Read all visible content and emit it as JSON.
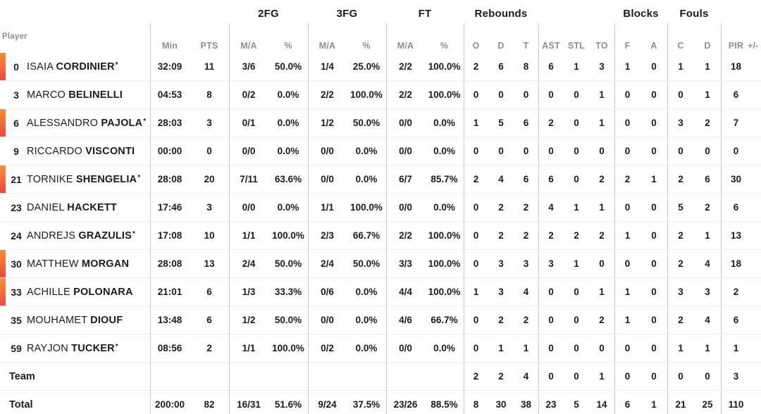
{
  "colors": {
    "on_court_bar_top": "#f79132",
    "on_court_bar_bottom": "#e94b41",
    "text_dark": "#1b1b1e",
    "text_gray": "#8e8e93",
    "divider_vertical": "#c7c7cb",
    "divider_horizontal": "#ececee"
  },
  "header": {
    "player_label": "Player",
    "groups": [
      {
        "label": "2FG"
      },
      {
        "label": "3FG"
      },
      {
        "label": "FT"
      },
      {
        "label": "Rebounds"
      },
      {
        "label": "Blocks"
      },
      {
        "label": "Fouls"
      }
    ],
    "columns": [
      "Min",
      "PTS",
      "M/A",
      "%",
      "M/A",
      "%",
      "M/A",
      "%",
      "O",
      "D",
      "T",
      "AST",
      "STL",
      "TO",
      "F",
      "A",
      "C",
      "D",
      "PIR",
      "+/-"
    ]
  },
  "rows": [
    {
      "type": "player",
      "number": "0",
      "first_name": "ISAIA",
      "last_name": "CORDINIER",
      "starter": true,
      "on_court": true,
      "min": "32:09",
      "pts": "11",
      "fg2_ma": "3/6",
      "fg2_pct": "50.0%",
      "fg3_ma": "1/4",
      "fg3_pct": "25.0%",
      "ft_ma": "2/2",
      "ft_pct": "100.0%",
      "reb_o": "2",
      "reb_d": "6",
      "reb_t": "8",
      "ast": "6",
      "stl": "1",
      "to": "3",
      "blk_f": "1",
      "blk_a": "0",
      "foul_c": "1",
      "foul_d": "1",
      "pir": "18"
    },
    {
      "type": "player",
      "number": "3",
      "first_name": "MARCO",
      "last_name": "BELINELLI",
      "starter": false,
      "on_court": false,
      "min": "04:53",
      "pts": "8",
      "fg2_ma": "0/2",
      "fg2_pct": "0.0%",
      "fg3_ma": "2/2",
      "fg3_pct": "100.0%",
      "ft_ma": "2/2",
      "ft_pct": "100.0%",
      "reb_o": "0",
      "reb_d": "0",
      "reb_t": "0",
      "ast": "0",
      "stl": "0",
      "to": "1",
      "blk_f": "0",
      "blk_a": "0",
      "foul_c": "0",
      "foul_d": "1",
      "pir": "6"
    },
    {
      "type": "player",
      "number": "6",
      "first_name": "ALESSANDRO",
      "last_name": "PAJOLA",
      "starter": true,
      "on_court": true,
      "min": "28:03",
      "pts": "3",
      "fg2_ma": "0/1",
      "fg2_pct": "0.0%",
      "fg3_ma": "1/2",
      "fg3_pct": "50.0%",
      "ft_ma": "0/0",
      "ft_pct": "0.0%",
      "reb_o": "1",
      "reb_d": "5",
      "reb_t": "6",
      "ast": "2",
      "stl": "0",
      "to": "1",
      "blk_f": "0",
      "blk_a": "0",
      "foul_c": "3",
      "foul_d": "2",
      "pir": "7"
    },
    {
      "type": "player",
      "number": "9",
      "first_name": "RICCARDO",
      "last_name": "VISCONTI",
      "starter": false,
      "on_court": false,
      "min": "00:00",
      "pts": "0",
      "fg2_ma": "0/0",
      "fg2_pct": "0.0%",
      "fg3_ma": "0/0",
      "fg3_pct": "0.0%",
      "ft_ma": "0/0",
      "ft_pct": "0.0%",
      "reb_o": "0",
      "reb_d": "0",
      "reb_t": "0",
      "ast": "0",
      "stl": "0",
      "to": "0",
      "blk_f": "0",
      "blk_a": "0",
      "foul_c": "0",
      "foul_d": "0",
      "pir": "0"
    },
    {
      "type": "player",
      "number": "21",
      "first_name": "TORNIKE",
      "last_name": "SHENGELIA",
      "starter": true,
      "on_court": true,
      "min": "28:08",
      "pts": "20",
      "fg2_ma": "7/11",
      "fg2_pct": "63.6%",
      "fg3_ma": "0/0",
      "fg3_pct": "0.0%",
      "ft_ma": "6/7",
      "ft_pct": "85.7%",
      "reb_o": "2",
      "reb_d": "4",
      "reb_t": "6",
      "ast": "6",
      "stl": "0",
      "to": "2",
      "blk_f": "2",
      "blk_a": "1",
      "foul_c": "2",
      "foul_d": "6",
      "pir": "30"
    },
    {
      "type": "player",
      "number": "23",
      "first_name": "DANIEL",
      "last_name": "HACKETT",
      "starter": false,
      "on_court": false,
      "min": "17:46",
      "pts": "3",
      "fg2_ma": "0/0",
      "fg2_pct": "0.0%",
      "fg3_ma": "1/1",
      "fg3_pct": "100.0%",
      "ft_ma": "0/0",
      "ft_pct": "0.0%",
      "reb_o": "0",
      "reb_d": "2",
      "reb_t": "2",
      "ast": "4",
      "stl": "1",
      "to": "1",
      "blk_f": "0",
      "blk_a": "0",
      "foul_c": "5",
      "foul_d": "2",
      "pir": "6"
    },
    {
      "type": "player",
      "number": "24",
      "first_name": "ANDREJS",
      "last_name": "GRAZULIS",
      "starter": true,
      "on_court": false,
      "min": "17:08",
      "pts": "10",
      "fg2_ma": "1/1",
      "fg2_pct": "100.0%",
      "fg3_ma": "2/3",
      "fg3_pct": "66.7%",
      "ft_ma": "2/2",
      "ft_pct": "100.0%",
      "reb_o": "0",
      "reb_d": "2",
      "reb_t": "2",
      "ast": "2",
      "stl": "2",
      "to": "2",
      "blk_f": "1",
      "blk_a": "0",
      "foul_c": "2",
      "foul_d": "1",
      "pir": "13"
    },
    {
      "type": "player",
      "number": "30",
      "first_name": "MATTHEW",
      "last_name": "MORGAN",
      "starter": false,
      "on_court": true,
      "min": "28:08",
      "pts": "13",
      "fg2_ma": "2/4",
      "fg2_pct": "50.0%",
      "fg3_ma": "2/4",
      "fg3_pct": "50.0%",
      "ft_ma": "3/3",
      "ft_pct": "100.0%",
      "reb_o": "0",
      "reb_d": "3",
      "reb_t": "3",
      "ast": "3",
      "stl": "1",
      "to": "0",
      "blk_f": "0",
      "blk_a": "0",
      "foul_c": "2",
      "foul_d": "4",
      "pir": "18"
    },
    {
      "type": "player",
      "number": "33",
      "first_name": "ACHILLE",
      "last_name": "POLONARA",
      "starter": false,
      "on_court": true,
      "min": "21:01",
      "pts": "6",
      "fg2_ma": "1/3",
      "fg2_pct": "33.3%",
      "fg3_ma": "0/6",
      "fg3_pct": "0.0%",
      "ft_ma": "4/4",
      "ft_pct": "100.0%",
      "reb_o": "1",
      "reb_d": "3",
      "reb_t": "4",
      "ast": "0",
      "stl": "0",
      "to": "1",
      "blk_f": "1",
      "blk_a": "0",
      "foul_c": "3",
      "foul_d": "3",
      "pir": "2"
    },
    {
      "type": "player",
      "number": "35",
      "first_name": "MOUHAMET",
      "last_name": "DIOUF",
      "starter": false,
      "on_court": false,
      "min": "13:48",
      "pts": "6",
      "fg2_ma": "1/2",
      "fg2_pct": "50.0%",
      "fg3_ma": "0/0",
      "fg3_pct": "0.0%",
      "ft_ma": "4/6",
      "ft_pct": "66.7%",
      "reb_o": "0",
      "reb_d": "2",
      "reb_t": "2",
      "ast": "0",
      "stl": "0",
      "to": "2",
      "blk_f": "1",
      "blk_a": "0",
      "foul_c": "2",
      "foul_d": "4",
      "pir": "6"
    },
    {
      "type": "player",
      "number": "59",
      "first_name": "RAYJON",
      "last_name": "TUCKER",
      "starter": true,
      "on_court": false,
      "min": "08:56",
      "pts": "2",
      "fg2_ma": "1/1",
      "fg2_pct": "100.0%",
      "fg3_ma": "0/2",
      "fg3_pct": "0.0%",
      "ft_ma": "0/0",
      "ft_pct": "0.0%",
      "reb_o": "0",
      "reb_d": "1",
      "reb_t": "1",
      "ast": "0",
      "stl": "0",
      "to": "0",
      "blk_f": "0",
      "blk_a": "0",
      "foul_c": "1",
      "foul_d": "1",
      "pir": "1"
    },
    {
      "type": "team",
      "label": "Team",
      "min": "",
      "pts": "",
      "fg2_ma": "",
      "fg2_pct": "",
      "fg3_ma": "",
      "fg3_pct": "",
      "ft_ma": "",
      "ft_pct": "",
      "reb_o": "2",
      "reb_d": "2",
      "reb_t": "4",
      "ast": "0",
      "stl": "0",
      "to": "1",
      "blk_f": "0",
      "blk_a": "0",
      "foul_c": "0",
      "foul_d": "0",
      "pir": "3"
    },
    {
      "type": "total",
      "label": "Total",
      "min": "200:00",
      "pts": "82",
      "fg2_ma": "16/31",
      "fg2_pct": "51.6%",
      "fg3_ma": "9/24",
      "fg3_pct": "37.5%",
      "ft_ma": "23/26",
      "ft_pct": "88.5%",
      "reb_o": "8",
      "reb_d": "30",
      "reb_t": "38",
      "ast": "23",
      "stl": "5",
      "to": "14",
      "blk_f": "6",
      "blk_a": "1",
      "foul_c": "21",
      "foul_d": "25",
      "pir": "110"
    }
  ]
}
